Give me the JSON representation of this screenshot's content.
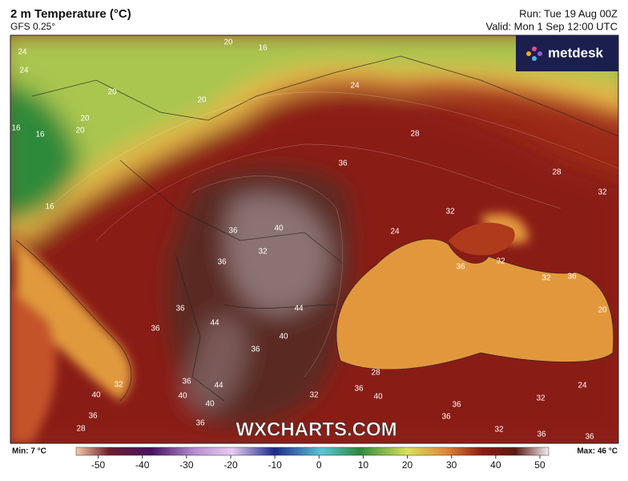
{
  "header": {
    "title": "2 m Temperature (°C)",
    "subtitle": "GFS 0.25°",
    "run": "Run: Tue 19 Aug 00Z",
    "valid": "Valid: Mon 1 Sep 12:00 UTC"
  },
  "logo": "metdesk",
  "watermark": "WXCHARTS.COM",
  "contour_labels": [
    24,
    24,
    20,
    16,
    20,
    20,
    24,
    16,
    16,
    20,
    20,
    28,
    28,
    36,
    32,
    16,
    32,
    36,
    40,
    24,
    32,
    36,
    36,
    32,
    32,
    36,
    44,
    36,
    44,
    36,
    40,
    36,
    20,
    40,
    32,
    28,
    36,
    44,
    40,
    40,
    32,
    36,
    40,
    32,
    24,
    36,
    36,
    36,
    28,
    36,
    32,
    36,
    36
  ],
  "colorbar": {
    "min_label": "Min: 7 °C",
    "max_label": "Max: 46 °C",
    "ticks": [
      -50,
      -40,
      -30,
      -20,
      -10,
      0,
      10,
      20,
      30,
      40,
      50
    ],
    "range": [
      -55,
      52
    ]
  }
}
